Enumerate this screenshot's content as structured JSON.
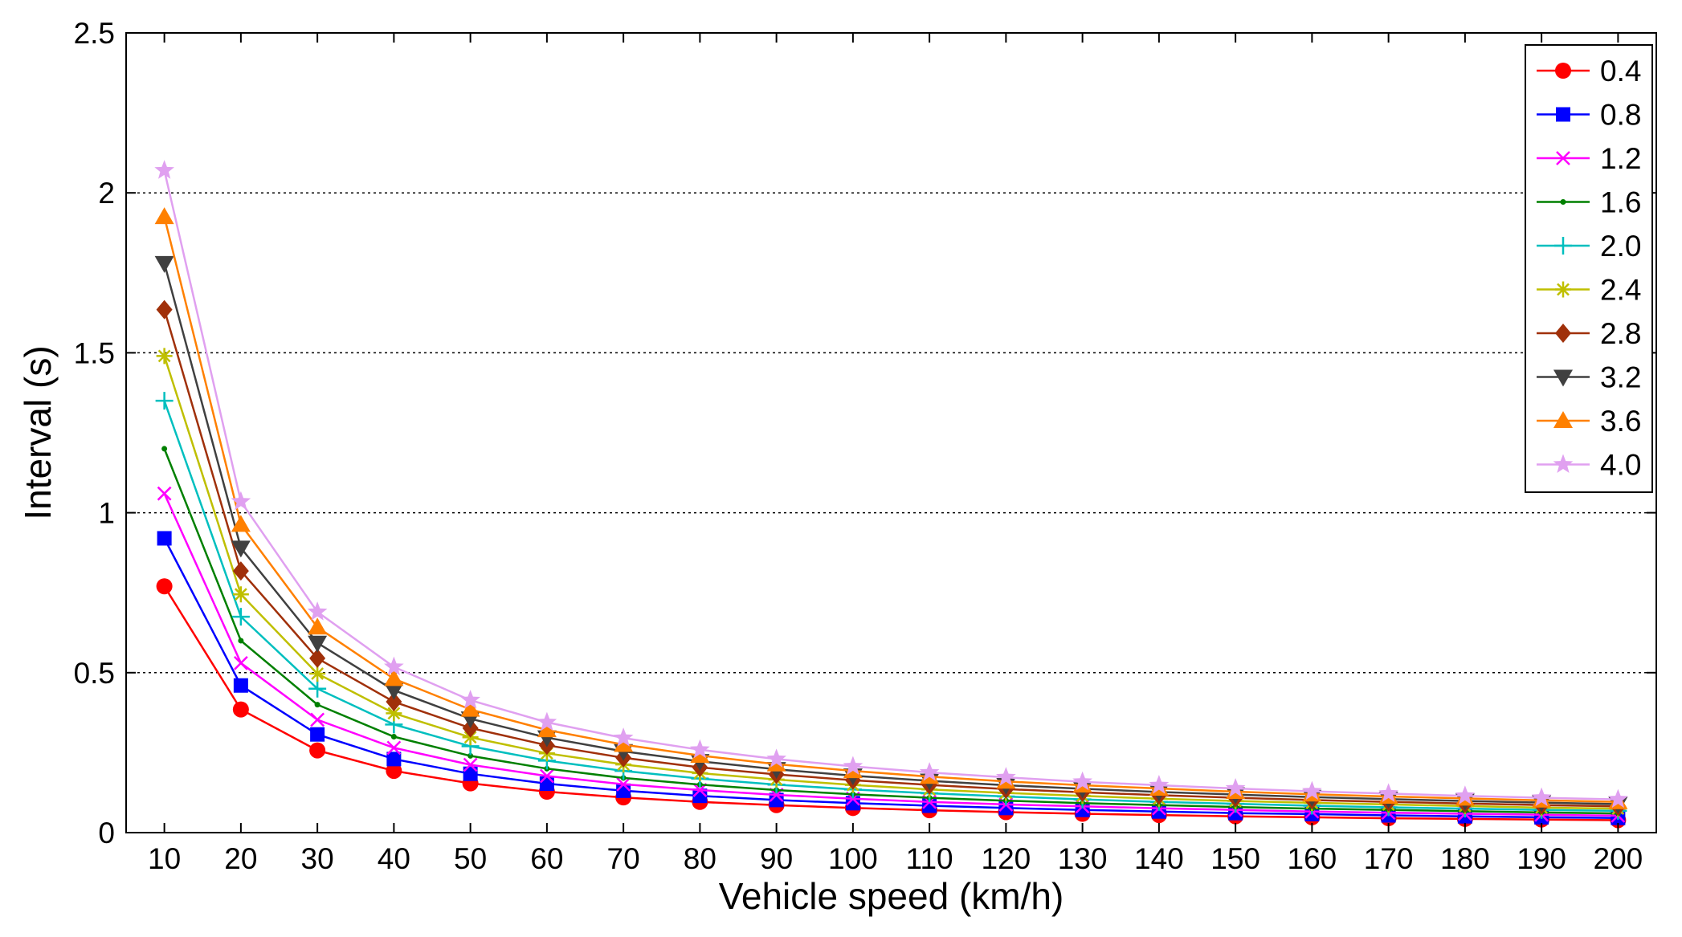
{
  "chart_data": {
    "type": "line",
    "xlabel": "Vehicle speed (km/h)",
    "ylabel": "Interval (s)",
    "x": [
      10,
      20,
      30,
      40,
      50,
      60,
      70,
      80,
      90,
      100,
      110,
      120,
      130,
      140,
      150,
      160,
      170,
      180,
      190,
      200
    ],
    "xlim": [
      5,
      205
    ],
    "ylim": [
      0,
      2.5
    ],
    "x_ticks": [
      "10",
      "20",
      "30",
      "40",
      "50",
      "60",
      "70",
      "80",
      "90",
      "100",
      "110",
      "120",
      "130",
      "140",
      "150",
      "160",
      "170",
      "180",
      "190",
      "200"
    ],
    "y_ticks": [
      "0",
      "0.5",
      "1",
      "1.5",
      "2",
      "2.5"
    ],
    "y_tick_values": [
      0,
      0.5,
      1,
      1.5,
      2,
      2.5
    ],
    "grid": "horizontal dotted",
    "legend_position": "top-right",
    "series": [
      {
        "name": "0.4",
        "color": "#ff0000",
        "marker": "circle",
        "values": [
          0.77,
          0.385,
          0.257,
          0.193,
          0.154,
          0.128,
          0.11,
          0.096,
          0.086,
          0.077,
          0.07,
          0.064,
          0.059,
          0.055,
          0.051,
          0.048,
          0.045,
          0.043,
          0.041,
          0.039
        ]
      },
      {
        "name": "0.8",
        "color": "#0000ff",
        "marker": "square",
        "values": [
          0.92,
          0.46,
          0.307,
          0.23,
          0.184,
          0.153,
          0.131,
          0.115,
          0.102,
          0.092,
          0.084,
          0.077,
          0.071,
          0.066,
          0.061,
          0.058,
          0.054,
          0.051,
          0.048,
          0.046
        ]
      },
      {
        "name": "1.2",
        "color": "#ff00ff",
        "marker": "x",
        "values": [
          1.06,
          0.53,
          0.353,
          0.265,
          0.212,
          0.177,
          0.151,
          0.133,
          0.118,
          0.106,
          0.096,
          0.088,
          0.082,
          0.076,
          0.071,
          0.066,
          0.062,
          0.059,
          0.056,
          0.053
        ]
      },
      {
        "name": "1.6",
        "color": "#008000",
        "marker": "dot",
        "values": [
          1.2,
          0.6,
          0.4,
          0.3,
          0.24,
          0.2,
          0.171,
          0.15,
          0.133,
          0.12,
          0.109,
          0.1,
          0.092,
          0.086,
          0.08,
          0.075,
          0.071,
          0.067,
          0.063,
          0.06
        ]
      },
      {
        "name": "2.0",
        "color": "#00bfbf",
        "marker": "plus",
        "values": [
          1.35,
          0.675,
          0.45,
          0.338,
          0.27,
          0.225,
          0.193,
          0.169,
          0.15,
          0.135,
          0.123,
          0.113,
          0.104,
          0.096,
          0.09,
          0.084,
          0.079,
          0.075,
          0.071,
          0.068
        ]
      },
      {
        "name": "2.4",
        "color": "#bfbf00",
        "marker": "asterisk",
        "values": [
          1.49,
          0.745,
          0.497,
          0.373,
          0.298,
          0.248,
          0.213,
          0.186,
          0.166,
          0.149,
          0.135,
          0.124,
          0.115,
          0.106,
          0.099,
          0.093,
          0.088,
          0.083,
          0.078,
          0.075
        ]
      },
      {
        "name": "2.8",
        "color": "#a0300a",
        "marker": "diamond",
        "values": [
          1.635,
          0.818,
          0.545,
          0.409,
          0.327,
          0.273,
          0.234,
          0.204,
          0.182,
          0.164,
          0.149,
          0.136,
          0.126,
          0.117,
          0.109,
          0.102,
          0.096,
          0.091,
          0.086,
          0.082
        ]
      },
      {
        "name": "3.2",
        "color": "#404040",
        "marker": "triangle-down",
        "values": [
          1.78,
          0.89,
          0.593,
          0.445,
          0.356,
          0.297,
          0.254,
          0.223,
          0.198,
          0.178,
          0.162,
          0.148,
          0.137,
          0.127,
          0.119,
          0.111,
          0.105,
          0.099,
          0.094,
          0.089
        ]
      },
      {
        "name": "3.6",
        "color": "#ff8000",
        "marker": "triangle-up",
        "values": [
          1.925,
          0.963,
          0.642,
          0.481,
          0.385,
          0.321,
          0.275,
          0.241,
          0.214,
          0.193,
          0.175,
          0.16,
          0.148,
          0.138,
          0.128,
          0.12,
          0.113,
          0.107,
          0.101,
          0.096
        ]
      },
      {
        "name": "4.0",
        "color": "#e0a0f0",
        "marker": "star",
        "values": [
          2.07,
          1.035,
          0.69,
          0.518,
          0.414,
          0.345,
          0.296,
          0.259,
          0.23,
          0.207,
          0.188,
          0.173,
          0.159,
          0.148,
          0.138,
          0.129,
          0.122,
          0.115,
          0.109,
          0.104
        ]
      }
    ]
  }
}
